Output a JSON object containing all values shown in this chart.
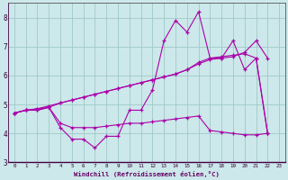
{
  "xlabel": "Windchill (Refroidissement éolien,°C)",
  "background_color": "#cce8ea",
  "grid_color": "#a0c8c8",
  "line_color": "#aa00aa",
  "xlim": [
    -0.5,
    23.5
  ],
  "ylim": [
    3.0,
    8.5
  ],
  "xticks": [
    0,
    1,
    2,
    3,
    4,
    5,
    6,
    7,
    8,
    9,
    10,
    11,
    12,
    13,
    14,
    15,
    16,
    17,
    18,
    19,
    20,
    21,
    22,
    23
  ],
  "yticks": [
    3,
    4,
    5,
    6,
    7,
    8
  ],
  "series": [
    {
      "x": [
        0,
        1,
        2,
        3,
        4,
        5,
        6,
        7,
        8,
        9,
        10,
        11,
        12,
        13,
        14,
        15,
        16,
        17,
        18,
        19,
        20,
        21,
        22
      ],
      "y": [
        4.7,
        4.8,
        4.8,
        4.9,
        4.2,
        3.8,
        3.8,
        3.5,
        3.9,
        3.9,
        4.8,
        4.8,
        5.5,
        7.2,
        7.9,
        7.5,
        8.2,
        6.6,
        6.6,
        7.2,
        6.2,
        6.6,
        4.0
      ]
    },
    {
      "x": [
        0,
        1,
        2,
        3,
        4,
        5,
        6,
        7,
        8,
        9,
        10,
        11,
        12,
        13,
        14,
        15,
        16,
        17,
        18,
        19,
        20,
        21,
        22
      ],
      "y": [
        4.7,
        4.8,
        4.8,
        4.9,
        4.35,
        4.2,
        4.2,
        4.2,
        4.25,
        4.3,
        4.35,
        4.35,
        4.4,
        4.45,
        4.5,
        4.55,
        4.6,
        4.1,
        4.05,
        4.0,
        3.95,
        3.95,
        4.0
      ]
    },
    {
      "x": [
        0,
        1,
        2,
        3,
        4,
        5,
        6,
        7,
        8,
        9,
        10,
        11,
        12,
        13,
        14,
        15,
        16,
        17,
        18,
        19,
        20,
        21,
        22
      ],
      "y": [
        4.7,
        4.8,
        4.85,
        4.9,
        5.05,
        5.15,
        5.25,
        5.35,
        5.45,
        5.55,
        5.65,
        5.75,
        5.85,
        5.95,
        6.05,
        6.2,
        6.4,
        6.55,
        6.6,
        6.65,
        6.8,
        7.2,
        6.6
      ]
    },
    {
      "x": [
        0,
        1,
        2,
        3,
        4,
        5,
        6,
        7,
        8,
        9,
        10,
        11,
        12,
        13,
        14,
        15,
        16,
        17,
        18,
        19,
        20,
        21,
        22
      ],
      "y": [
        4.7,
        4.8,
        4.85,
        4.95,
        5.05,
        5.15,
        5.25,
        5.35,
        5.45,
        5.55,
        5.65,
        5.75,
        5.85,
        5.95,
        6.05,
        6.2,
        6.45,
        6.6,
        6.65,
        6.7,
        6.75,
        6.6,
        4.0
      ]
    }
  ]
}
